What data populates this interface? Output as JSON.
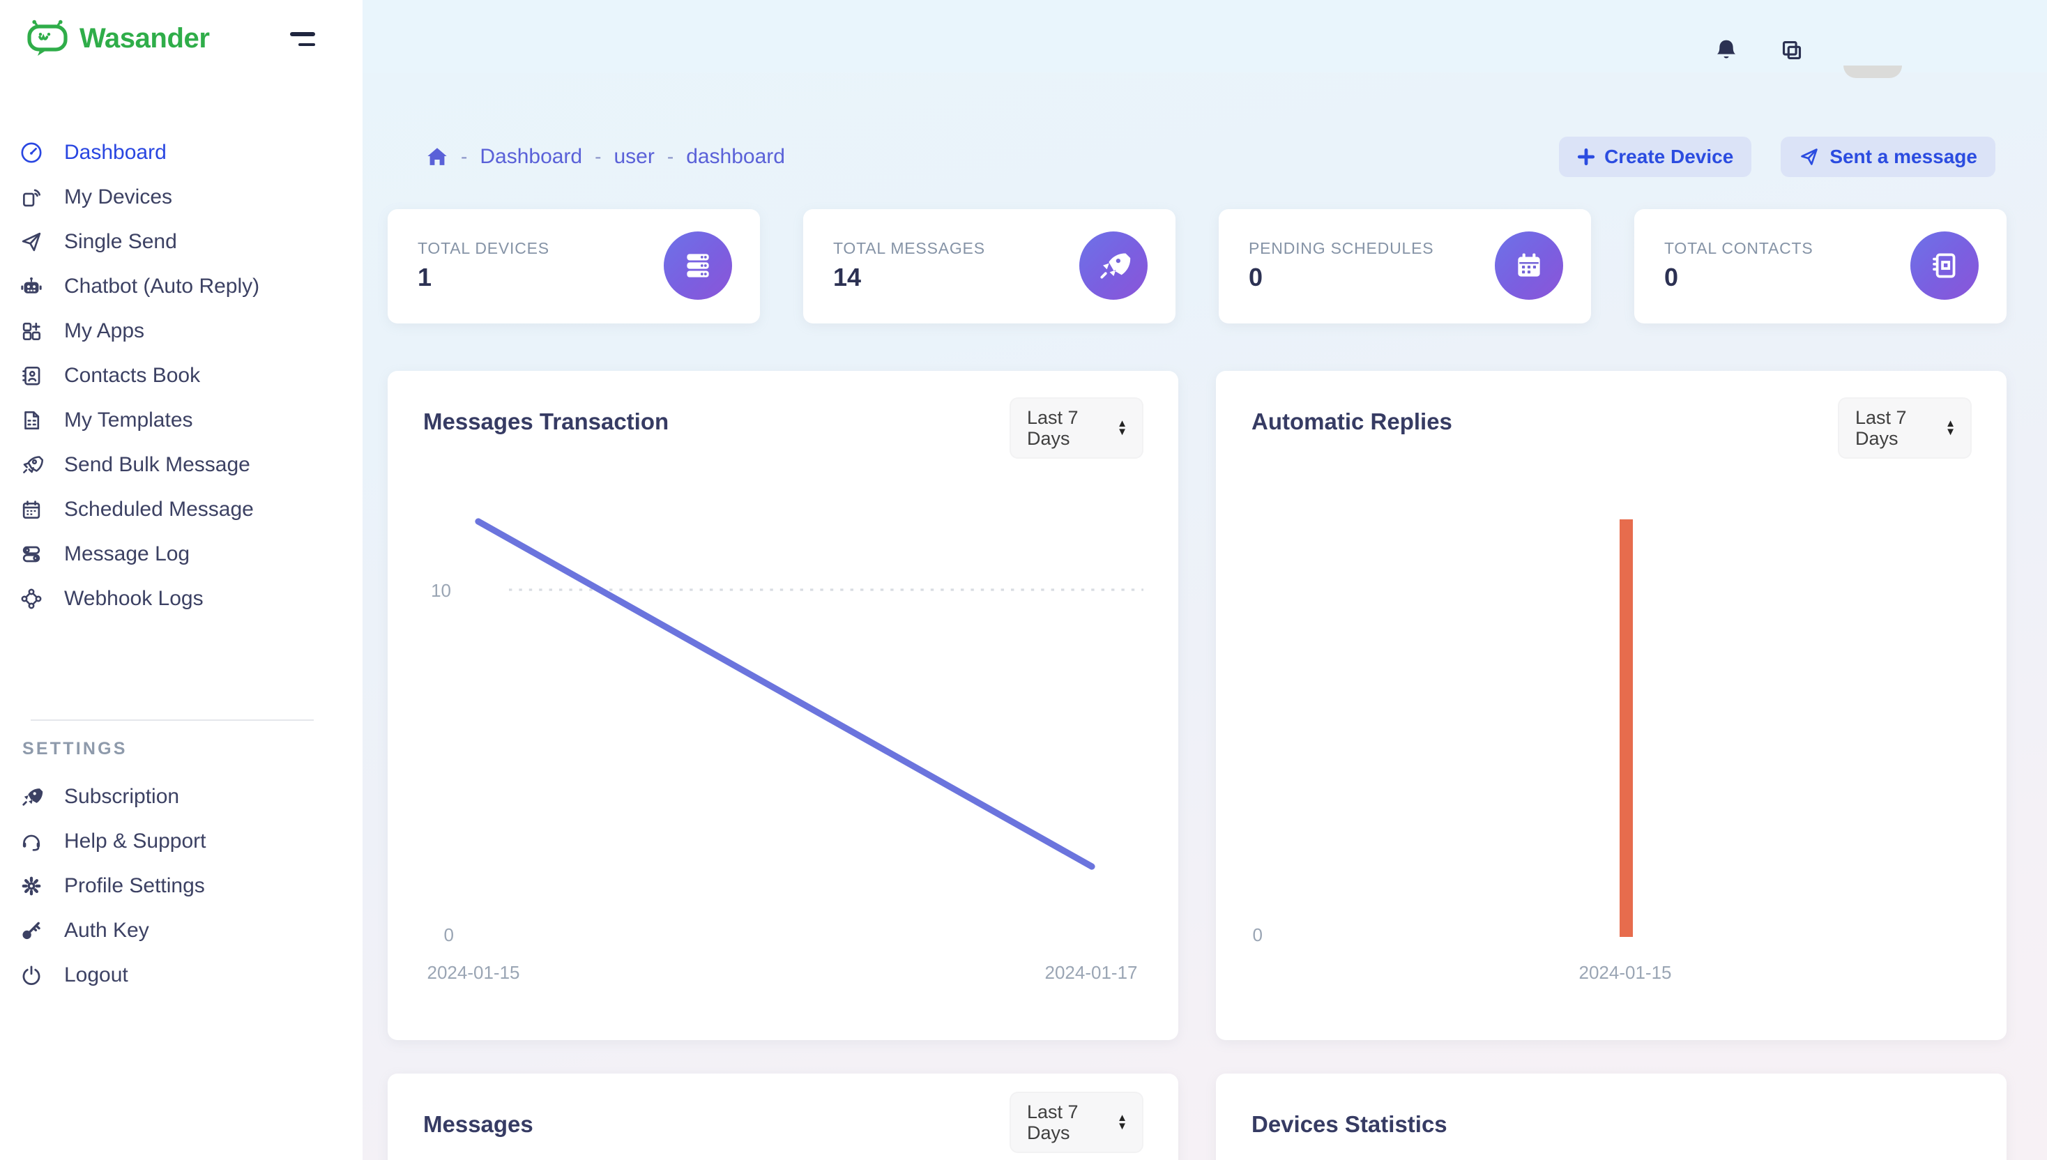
{
  "brand": {
    "name": "Wasander"
  },
  "sidebar": {
    "items": [
      {
        "label": "Dashboard",
        "icon": "dashboard-icon",
        "active": true
      },
      {
        "label": "My Devices",
        "icon": "devices-icon"
      },
      {
        "label": "Single Send",
        "icon": "paper-plane-icon"
      },
      {
        "label": "Chatbot (Auto Reply)",
        "icon": "robot-icon"
      },
      {
        "label": "My Apps",
        "icon": "apps-grid-icon"
      },
      {
        "label": "Contacts Book",
        "icon": "contacts-book-icon"
      },
      {
        "label": "My Templates",
        "icon": "template-file-icon"
      },
      {
        "label": "Send Bulk Message",
        "icon": "rocket-icon"
      },
      {
        "label": "Scheduled Message",
        "icon": "calendar-icon"
      },
      {
        "label": "Message Log",
        "icon": "toggles-icon"
      },
      {
        "label": "Webhook Logs",
        "icon": "webhook-icon"
      }
    ],
    "settings_header": "SETTINGS",
    "settings_items": [
      {
        "label": "Subscription",
        "icon": "rocket-filled-icon"
      },
      {
        "label": "Help & Support",
        "icon": "headset-icon"
      },
      {
        "label": "Profile Settings",
        "icon": "gear-icon"
      },
      {
        "label": "Auth Key",
        "icon": "key-icon"
      },
      {
        "label": "Logout",
        "icon": "power-icon"
      }
    ]
  },
  "topbar": {
    "icons": [
      "bell-icon",
      "copy-icon",
      "avatar"
    ]
  },
  "breadcrumb": {
    "separator": "-",
    "links": [
      "Dashboard",
      "user",
      "dashboard"
    ]
  },
  "actions": {
    "create_device": "Create Device",
    "sent_message": "Sent a message"
  },
  "stats": [
    {
      "label": "TOTAL DEVICES",
      "value": "1",
      "icon": "server-stack-icon"
    },
    {
      "label": "TOTAL MESSAGES",
      "value": "14",
      "icon": "rocket-icon"
    },
    {
      "label": "PENDING SCHEDULES",
      "value": "0",
      "icon": "calendar-icon"
    },
    {
      "label": "TOTAL CONTACTS",
      "value": "0",
      "icon": "contacts-book-icon"
    }
  ],
  "cards": {
    "messages_transaction": {
      "title": "Messages Transaction",
      "range_selector": "Last 7 Days"
    },
    "automatic_replies": {
      "title": "Automatic Replies",
      "range_selector": "Last 7 Days"
    },
    "messages": {
      "title": "Messages",
      "range_selector": "Last 7 Days"
    },
    "devices_statistics": {
      "title": "Devices Statistics"
    }
  },
  "chart_data": [
    {
      "id": "messages_transaction",
      "type": "line",
      "title": "Messages Transaction",
      "range_selector": "Last 7 Days",
      "x": [
        "2024-01-15",
        "2024-01-17"
      ],
      "values": [
        12,
        2
      ],
      "y_ticks": [
        0,
        10
      ],
      "ylim": [
        0,
        12
      ],
      "grid": "dotted horizontal gridline at y=10",
      "legend": "none",
      "line_color": "#6b74dd"
    },
    {
      "id": "automatic_replies",
      "type": "bar",
      "title": "Automatic Replies",
      "range_selector": "Last 7 Days",
      "x": [
        "2024-01-15"
      ],
      "values": [
        14
      ],
      "y_ticks": [
        0
      ],
      "ylim": [
        0,
        14
      ],
      "grid": "off",
      "legend": "none",
      "bar_color": "#e76c4d"
    }
  ],
  "colors": {
    "brand_green": "#2fad49",
    "active_blue": "#2946e1",
    "sidebar_text": "#3c4163",
    "breadcrumb_link": "#5a61d8",
    "button_text": "#2b4ce0",
    "button_bg": "#dbe3f7",
    "stat_icon_gradient": [
      "#6d72e8",
      "#8b55d8"
    ],
    "line_series": "#6b74dd",
    "bar_series": "#e76c4d",
    "axis_text": "#9aa5b4",
    "topbar_bg": "#e9f5fc"
  }
}
